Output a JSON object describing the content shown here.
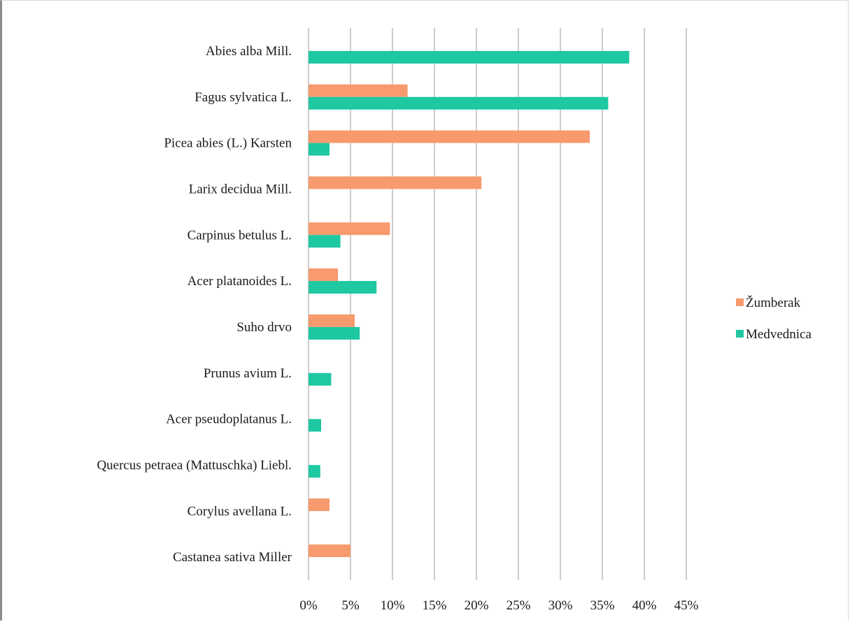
{
  "chart_data": {
    "type": "bar",
    "orientation": "horizontal",
    "categories": [
      "Abies alba Mill.",
      "Fagus sylvatica L.",
      "Picea abies (L.) Karsten",
      "Larix decidua Mill.",
      "Carpinus betulus L.",
      "Acer platanoides L.",
      "Suho drvo",
      "Prunus avium L.",
      "Acer pseudoplatanus L.",
      "Quercus petraea (Mattuschka) Liebl.",
      "Corylus avellana L.",
      "Castanea sativa Miller"
    ],
    "series": [
      {
        "name": "Žumberak",
        "color": "#f79a6e",
        "values": [
          0,
          11.8,
          33.5,
          20.6,
          9.7,
          3.5,
          5.5,
          0,
          0,
          0,
          2.5,
          5.0
        ]
      },
      {
        "name": "Medvednica",
        "color": "#1ec8a0",
        "values": [
          38.2,
          35.7,
          2.5,
          0,
          3.8,
          8.1,
          6.1,
          2.7,
          1.5,
          1.4,
          0,
          0
        ]
      }
    ],
    "x_ticks": [
      "0%",
      "5%",
      "10%",
      "15%",
      "20%",
      "25%",
      "30%",
      "35%",
      "40%",
      "45%"
    ],
    "xlim": [
      0,
      45
    ],
    "grid": true,
    "legend_position": "right",
    "title": "",
    "xlabel": "",
    "ylabel": ""
  }
}
